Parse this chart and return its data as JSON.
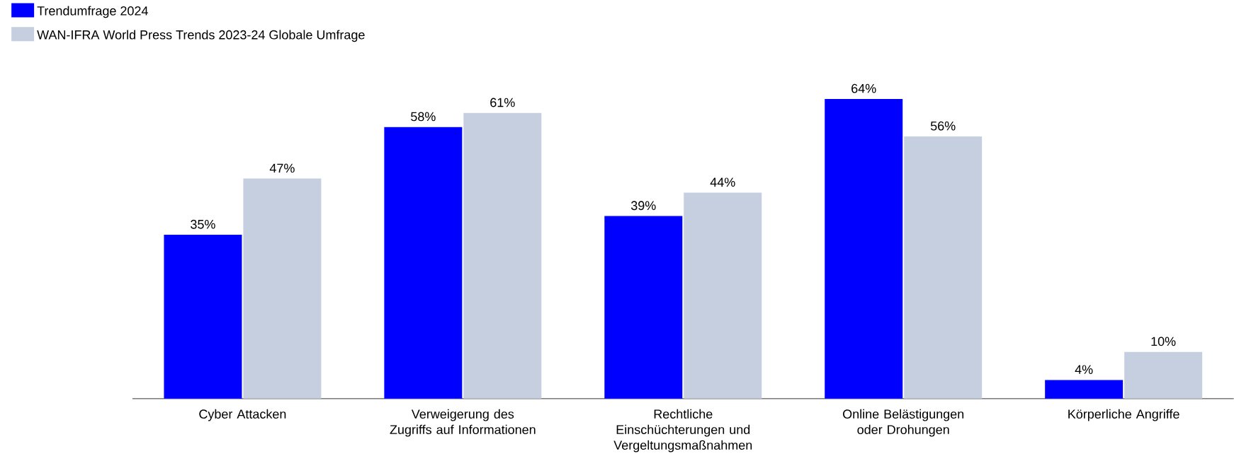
{
  "chart_data": {
    "type": "bar",
    "categories": [
      "Cyber Attacken",
      "Verweigerung des Zugriffs auf Informationen",
      "Rechtliche Einschüchterungen und Vergeltungsmaßnahmen",
      "Online Belästigungen oder Drohungen",
      "Körperliche Angriffe"
    ],
    "series": [
      {
        "name": "Trendumfrage 2024",
        "color": "#0000ff",
        "values": [
          35,
          58,
          39,
          64,
          4
        ],
        "value_labels": [
          "35%",
          "58%",
          "39%",
          "64%",
          "4%"
        ]
      },
      {
        "name": "WAN-IFRA World Press Trends 2023-24 Globale Umfrage",
        "color": "#c5cfe0",
        "values": [
          47,
          61,
          44,
          56,
          10
        ],
        "value_labels": [
          "47%",
          "61%",
          "44%",
          "56%",
          "10%"
        ]
      }
    ],
    "tick_labels": "x",
    "legend": "top left"
  }
}
